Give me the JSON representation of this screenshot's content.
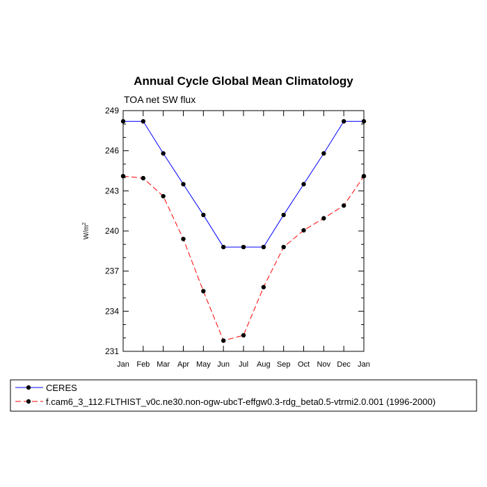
{
  "chart_data": {
    "type": "line",
    "title": "Annual Cycle Global Mean Climatology",
    "subtitle": "TOA net SW flux",
    "xlabel": "",
    "ylabel_base": "W/m",
    "ylabel_sup": "2",
    "categories": [
      "Jan",
      "Feb",
      "Mar",
      "Apr",
      "May",
      "Jun",
      "Jul",
      "Aug",
      "Sep",
      "Oct",
      "Nov",
      "Dec",
      "Jan"
    ],
    "ylim": [
      231,
      249
    ],
    "yticks": [
      231,
      234,
      237,
      240,
      243,
      246,
      249
    ],
    "series": [
      {
        "name": "CERES",
        "color": "#0000ff",
        "dash": "solid",
        "values": [
          248.2,
          248.2,
          245.8,
          243.5,
          241.2,
          238.8,
          238.8,
          238.8,
          241.2,
          243.5,
          245.8,
          248.2,
          248.2
        ]
      },
      {
        "name": "f.cam6_3_112.FLTHIST_v0c.ne30.non-ogw-ubcT-effgw0.3-rdg_beta0.5-vtrmi2.0.001 (1996-2000)",
        "color": "#ff0000",
        "dash": "dashed",
        "values": [
          244.1,
          243.95,
          242.6,
          239.4,
          235.5,
          231.8,
          232.2,
          235.8,
          238.8,
          240.05,
          240.95,
          241.9,
          244.1
        ]
      }
    ]
  }
}
